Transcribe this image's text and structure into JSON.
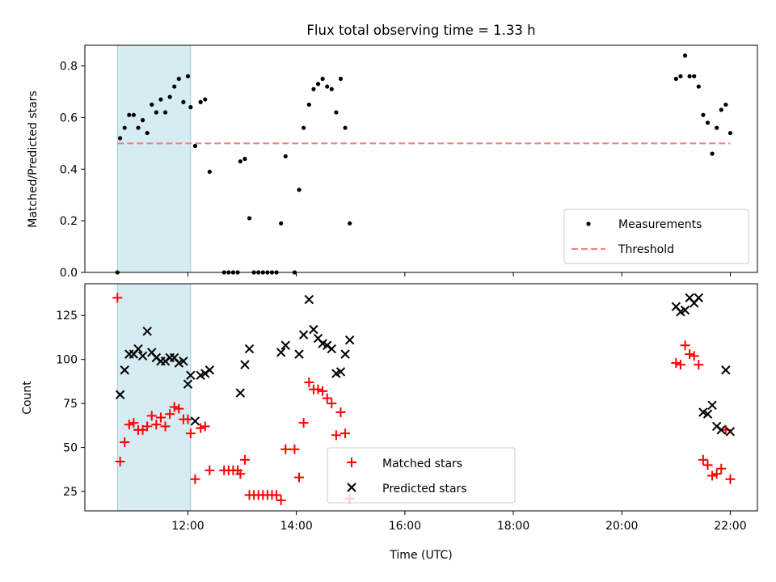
{
  "chart_data": [
    {
      "type": "scatter",
      "title": "Flux total observing time = 1.33 h",
      "xlabel": "",
      "ylabel": "Matched/Predicted stars",
      "xlim": [
        "10:06",
        "22:30"
      ],
      "ylim": [
        0,
        0.88
      ],
      "yticks": [
        0.0,
        0.2,
        0.4,
        0.6,
        0.8
      ],
      "ytick_labels": [
        "0.0",
        "0.2",
        "0.4",
        "0.6",
        "0.8"
      ],
      "legend_position": "lower right",
      "shaded_interval": {
        "x_start": "10:42",
        "x_end": "12:03",
        "color": "#add8e6"
      },
      "threshold": {
        "name": "Threshold",
        "y": 0.5,
        "x_start": "10:42",
        "x_end": "22:00",
        "color": "#f08080",
        "style": "dashed"
      },
      "series": [
        {
          "name": "Measurements",
          "marker": "dot",
          "color": "#000000",
          "points": [
            [
              "10:42",
              0.0
            ],
            [
              "10:45",
              0.52
            ],
            [
              "10:50",
              0.56
            ],
            [
              "10:55",
              0.61
            ],
            [
              "11:00",
              0.61
            ],
            [
              "11:05",
              0.56
            ],
            [
              "11:10",
              0.59
            ],
            [
              "11:15",
              0.54
            ],
            [
              "11:20",
              0.65
            ],
            [
              "11:25",
              0.62
            ],
            [
              "11:30",
              0.67
            ],
            [
              "11:35",
              0.62
            ],
            [
              "11:40",
              0.68
            ],
            [
              "11:45",
              0.72
            ],
            [
              "11:50",
              0.75
            ],
            [
              "11:55",
              0.66
            ],
            [
              "12:00",
              0.76
            ],
            [
              "12:03",
              0.64
            ],
            [
              "12:08",
              0.49
            ],
            [
              "12:14",
              0.66
            ],
            [
              "12:19",
              0.67
            ],
            [
              "12:24",
              0.39
            ],
            [
              "12:40",
              0.0
            ],
            [
              "12:45",
              0.0
            ],
            [
              "12:50",
              0.0
            ],
            [
              "12:55",
              0.0
            ],
            [
              "12:58",
              0.43
            ],
            [
              "13:03",
              0.44
            ],
            [
              "13:08",
              0.21
            ],
            [
              "13:13",
              0.0
            ],
            [
              "13:18",
              0.0
            ],
            [
              "13:23",
              0.0
            ],
            [
              "13:28",
              0.0
            ],
            [
              "13:33",
              0.0
            ],
            [
              "13:38",
              0.0
            ],
            [
              "13:43",
              0.19
            ],
            [
              "13:48",
              0.45
            ],
            [
              "13:58",
              0.0
            ],
            [
              "14:03",
              0.32
            ],
            [
              "14:08",
              0.56
            ],
            [
              "14:14",
              0.65
            ],
            [
              "14:19",
              0.71
            ],
            [
              "14:24",
              0.73
            ],
            [
              "14:29",
              0.75
            ],
            [
              "14:34",
              0.72
            ],
            [
              "14:39",
              0.71
            ],
            [
              "14:44",
              0.62
            ],
            [
              "14:49",
              0.75
            ],
            [
              "14:54",
              0.56
            ],
            [
              "14:59",
              0.19
            ],
            [
              "21:00",
              0.75
            ],
            [
              "21:05",
              0.76
            ],
            [
              "21:10",
              0.84
            ],
            [
              "21:15",
              0.76
            ],
            [
              "21:20",
              0.76
            ],
            [
              "21:25",
              0.72
            ],
            [
              "21:30",
              0.61
            ],
            [
              "21:35",
              0.58
            ],
            [
              "21:40",
              0.46
            ],
            [
              "21:45",
              0.56
            ],
            [
              "21:50",
              0.63
            ],
            [
              "21:55",
              0.65
            ],
            [
              "22:00",
              0.54
            ]
          ]
        }
      ]
    },
    {
      "type": "scatter",
      "title": "",
      "xlabel": "Time (UTC)",
      "ylabel": "Count",
      "xlim": [
        "10:06",
        "22:30"
      ],
      "ylim": [
        14,
        143
      ],
      "yticks": [
        25,
        50,
        75,
        100,
        125
      ],
      "ytick_labels": [
        "25",
        "50",
        "75",
        "100",
        "125"
      ],
      "xticks": [
        "12:00",
        "14:00",
        "16:00",
        "18:00",
        "20:00",
        "22:00"
      ],
      "xtick_labels": [
        "12:00",
        "14:00",
        "16:00",
        "18:00",
        "20:00",
        "22:00"
      ],
      "legend_position": "lower center",
      "shaded_interval": {
        "x_start": "10:42",
        "x_end": "12:03",
        "color": "#add8e6"
      },
      "series": [
        {
          "name": "Matched stars",
          "marker": "plus",
          "color": "#ff0000",
          "points": [
            [
              "10:42",
              135
            ],
            [
              "10:45",
              42
            ],
            [
              "10:50",
              53
            ],
            [
              "10:55",
              63
            ],
            [
              "11:00",
              64
            ],
            [
              "11:05",
              60
            ],
            [
              "11:10",
              60
            ],
            [
              "11:15",
              62
            ],
            [
              "11:20",
              68
            ],
            [
              "11:25",
              63
            ],
            [
              "11:30",
              67
            ],
            [
              "11:35",
              62
            ],
            [
              "11:40",
              69
            ],
            [
              "11:45",
              73
            ],
            [
              "11:50",
              72
            ],
            [
              "11:55",
              66
            ],
            [
              "12:00",
              66
            ],
            [
              "12:03",
              58
            ],
            [
              "12:08",
              32
            ],
            [
              "12:14",
              61
            ],
            [
              "12:19",
              62
            ],
            [
              "12:24",
              37
            ],
            [
              "12:40",
              37
            ],
            [
              "12:45",
              37
            ],
            [
              "12:50",
              37
            ],
            [
              "12:55",
              37
            ],
            [
              "12:58",
              35
            ],
            [
              "13:03",
              43
            ],
            [
              "13:08",
              23
            ],
            [
              "13:13",
              23
            ],
            [
              "13:18",
              23
            ],
            [
              "13:23",
              23
            ],
            [
              "13:28",
              23
            ],
            [
              "13:33",
              23
            ],
            [
              "13:38",
              23
            ],
            [
              "13:43",
              20
            ],
            [
              "13:48",
              49
            ],
            [
              "13:58",
              49
            ],
            [
              "14:03",
              33
            ],
            [
              "14:08",
              64
            ],
            [
              "14:14",
              87
            ],
            [
              "14:19",
              83
            ],
            [
              "14:24",
              83
            ],
            [
              "14:29",
              82
            ],
            [
              "14:34",
              78
            ],
            [
              "14:39",
              75
            ],
            [
              "14:44",
              57
            ],
            [
              "14:49",
              70
            ],
            [
              "14:54",
              58
            ],
            [
              "14:59",
              21
            ],
            [
              "21:00",
              98
            ],
            [
              "21:05",
              97
            ],
            [
              "21:10",
              108
            ],
            [
              "21:15",
              103
            ],
            [
              "21:20",
              102
            ],
            [
              "21:25",
              97
            ],
            [
              "21:30",
              43
            ],
            [
              "21:35",
              40
            ],
            [
              "21:40",
              34
            ],
            [
              "21:45",
              35
            ],
            [
              "21:50",
              38
            ],
            [
              "21:55",
              60
            ],
            [
              "22:00",
              32
            ]
          ]
        },
        {
          "name": "Predicted stars",
          "marker": "x",
          "color": "#000000",
          "points": [
            [
              "10:45",
              80
            ],
            [
              "10:50",
              94
            ],
            [
              "10:55",
              103
            ],
            [
              "11:00",
              103
            ],
            [
              "11:05",
              106
            ],
            [
              "11:10",
              102
            ],
            [
              "11:15",
              116
            ],
            [
              "11:20",
              104
            ],
            [
              "11:25",
              101
            ],
            [
              "11:30",
              99
            ],
            [
              "11:35",
              99
            ],
            [
              "11:40",
              101
            ],
            [
              "11:45",
              101
            ],
            [
              "11:50",
              98
            ],
            [
              "11:55",
              99
            ],
            [
              "12:00",
              86
            ],
            [
              "12:03",
              91
            ],
            [
              "12:08",
              65
            ],
            [
              "12:14",
              91
            ],
            [
              "12:19",
              92
            ],
            [
              "12:24",
              94
            ],
            [
              "12:58",
              81
            ],
            [
              "13:03",
              97
            ],
            [
              "13:08",
              106
            ],
            [
              "13:43",
              104
            ],
            [
              "13:48",
              108
            ],
            [
              "14:03",
              103
            ],
            [
              "14:08",
              114
            ],
            [
              "14:14",
              134
            ],
            [
              "14:19",
              117
            ],
            [
              "14:24",
              112
            ],
            [
              "14:29",
              109
            ],
            [
              "14:34",
              108
            ],
            [
              "14:39",
              106
            ],
            [
              "14:44",
              92
            ],
            [
              "14:49",
              93
            ],
            [
              "14:54",
              103
            ],
            [
              "14:59",
              111
            ],
            [
              "21:00",
              130
            ],
            [
              "21:05",
              127
            ],
            [
              "21:10",
              128
            ],
            [
              "21:15",
              135
            ],
            [
              "21:20",
              132
            ],
            [
              "21:25",
              135
            ],
            [
              "21:30",
              70
            ],
            [
              "21:35",
              69
            ],
            [
              "21:40",
              74
            ],
            [
              "21:45",
              62
            ],
            [
              "21:50",
              60
            ],
            [
              "21:55",
              94
            ],
            [
              "22:00",
              59
            ]
          ]
        }
      ]
    }
  ]
}
